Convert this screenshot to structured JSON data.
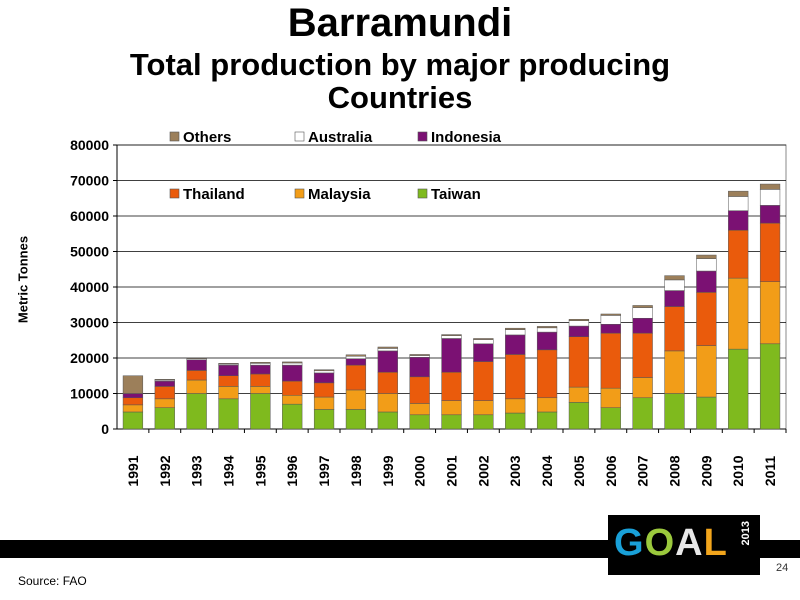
{
  "header": {
    "title": "Barramundi",
    "subtitle": "Total production by major producing Countries"
  },
  "footer": {
    "source": "Source: FAO",
    "page_number": "24",
    "logo_letters": [
      "G",
      "O",
      "A",
      "L"
    ],
    "logo_year": "2013"
  },
  "colors": {
    "Taiwan": "#7fba1e",
    "Malaysia": "#f29d18",
    "Thailand": "#ea5b0c",
    "Indonesia": "#7b1173",
    "Australia": "#ffffff",
    "Others": "#9c7f5a"
  },
  "chart_data": {
    "type": "bar",
    "stacked": true,
    "ylabel": "Metric Tonnes",
    "xlabel": "",
    "ylim": [
      0,
      80000
    ],
    "yticks": [
      "0",
      "10000",
      "20000",
      "30000",
      "40000",
      "50000",
      "60000",
      "70000",
      "80000"
    ],
    "grid": true,
    "legend_position": "top-left, inside plot",
    "categories": [
      "1991",
      "1992",
      "1993",
      "1994",
      "1995",
      "1996",
      "1997",
      "1998",
      "1999",
      "2000",
      "2001",
      "2002",
      "2003",
      "2004",
      "2005",
      "2006",
      "2007",
      "2008",
      "2009",
      "2010",
      "2011"
    ],
    "series": [
      {
        "name": "Taiwan",
        "values": [
          4800,
          6000,
          10000,
          8500,
          10000,
          7000,
          5500,
          5500,
          4800,
          4000,
          4000,
          4000,
          4500,
          4800,
          7500,
          6000,
          8800,
          10000,
          9000,
          22500,
          24000
        ]
      },
      {
        "name": "Malaysia",
        "values": [
          2000,
          2500,
          3800,
          3500,
          2000,
          2500,
          3500,
          5500,
          5200,
          3200,
          4000,
          4000,
          4000,
          4000,
          4300,
          5500,
          5700,
          12000,
          14500,
          20000,
          17500
        ]
      },
      {
        "name": "Thailand",
        "values": [
          2000,
          3500,
          2700,
          3000,
          3500,
          4000,
          4000,
          7000,
          6000,
          7500,
          8000,
          11000,
          12500,
          13500,
          14200,
          15500,
          12500,
          12500,
          15000,
          13500,
          16500
        ]
      },
      {
        "name": "Indonesia",
        "values": [
          1200,
          1500,
          3000,
          3000,
          2500,
          4500,
          2800,
          1800,
          6000,
          5500,
          9500,
          5000,
          5500,
          5000,
          3000,
          2500,
          4200,
          4500,
          6000,
          5500,
          5000
        ]
      },
      {
        "name": "Australia",
        "values": [
          0,
          300,
          300,
          300,
          500,
          600,
          600,
          700,
          700,
          500,
          800,
          1200,
          1500,
          1200,
          1500,
          2500,
          3000,
          3000,
          3500,
          4000,
          4500
        ]
      },
      {
        "name": "Others",
        "values": [
          5000,
          200,
          200,
          200,
          300,
          300,
          300,
          400,
          400,
          300,
          300,
          300,
          400,
          400,
          400,
          400,
          600,
          1200,
          1000,
          1500,
          1500
        ]
      }
    ],
    "legend": [
      {
        "name": "Others"
      },
      {
        "name": "Australia"
      },
      {
        "name": "Indonesia"
      },
      {
        "name": "Thailand"
      },
      {
        "name": "Malaysia"
      },
      {
        "name": "Taiwan"
      }
    ]
  }
}
